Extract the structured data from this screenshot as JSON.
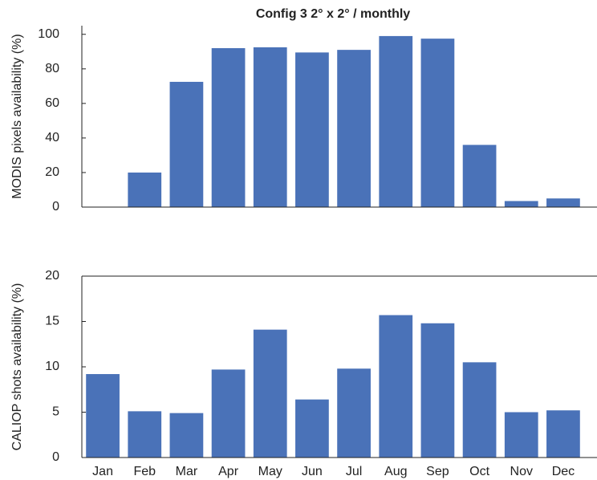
{
  "chart_data": [
    {
      "type": "bar",
      "title": "Config 3    2° x 2° / monthly",
      "y_label": "MODIS pixels availability (%)",
      "values": [
        0,
        20,
        72.5,
        92,
        92.5,
        89.5,
        91,
        99,
        97.5,
        36,
        3.5,
        5
      ],
      "color": "#4a72b8",
      "ylim": [
        0,
        105
      ],
      "yticks": [
        0,
        20,
        40,
        60,
        80,
        100
      ]
    },
    {
      "type": "bar",
      "y_label": "CALIOP shots availability (%)",
      "categories": [
        "Jan",
        "Feb",
        "Mar",
        "Apr",
        "May",
        "Jun",
        "Jul",
        "Aug",
        "Sep",
        "Oct",
        "Nov",
        "Dec"
      ],
      "values": [
        9.2,
        5.1,
        4.9,
        9.7,
        14.1,
        6.4,
        9.8,
        15.7,
        14.8,
        10.5,
        5.0,
        5.2
      ],
      "color": "#4a72b8",
      "ylim": [
        0,
        20
      ],
      "yticks": [
        0,
        5,
        10,
        15,
        20
      ]
    }
  ]
}
